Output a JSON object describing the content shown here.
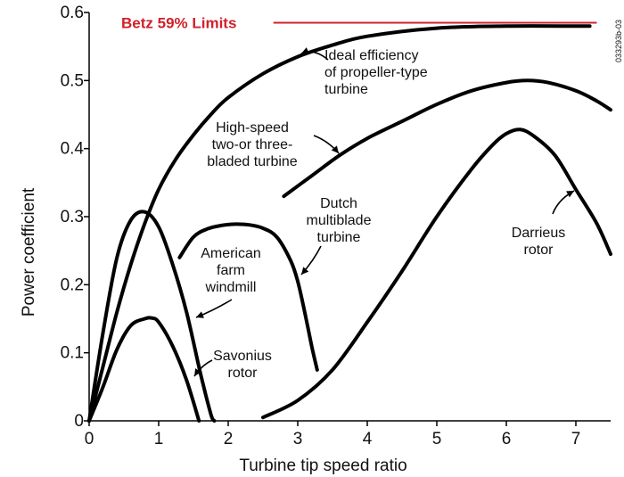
{
  "chart_data": {
    "type": "line",
    "xlabel": "Turbine tip speed ratio",
    "ylabel": "Power coefficient",
    "xlim": [
      0,
      7.5
    ],
    "ylim": [
      0,
      0.6
    ],
    "x_ticks": [
      "0",
      "1",
      "2",
      "3",
      "4",
      "5",
      "6",
      "7"
    ],
    "y_ticks": [
      "0",
      "0.1",
      "0.2",
      "0.3",
      "0.4",
      "0.5",
      "0.6"
    ],
    "betz_limit": {
      "label": "Betz 59% Limits",
      "value": 0.585,
      "x_start": 2.65,
      "x_end": 7.3,
      "color": "#d1202a"
    },
    "watermark": "033293b-03",
    "series": [
      {
        "name": "Ideal efficiency of propeller-type turbine",
        "x": [
          0,
          0.2,
          0.4,
          0.6,
          0.8,
          1.0,
          1.25,
          1.5,
          1.75,
          2.0,
          2.5,
          3.0,
          3.5,
          4.0,
          5.0,
          6.0,
          7.0,
          7.2
        ],
        "y": [
          0,
          0.08,
          0.16,
          0.23,
          0.29,
          0.34,
          0.385,
          0.42,
          0.45,
          0.475,
          0.51,
          0.535,
          0.552,
          0.565,
          0.577,
          0.58,
          0.58,
          0.58
        ]
      },
      {
        "name": "High-speed two-or three-bladed turbine",
        "x": [
          2.8,
          3.2,
          3.6,
          4.0,
          4.5,
          5.0,
          5.5,
          6.0,
          6.3,
          6.6,
          7.0,
          7.3,
          7.5
        ],
        "y": [
          0.33,
          0.36,
          0.39,
          0.415,
          0.44,
          0.465,
          0.485,
          0.497,
          0.5,
          0.497,
          0.485,
          0.47,
          0.457
        ]
      },
      {
        "name": "Dutch multiblade turbine",
        "x": [
          1.3,
          1.5,
          1.7,
          1.9,
          2.1,
          2.3,
          2.5,
          2.7,
          2.9,
          3.0,
          3.1,
          3.2,
          3.28
        ],
        "y": [
          0.24,
          0.27,
          0.282,
          0.287,
          0.289,
          0.288,
          0.283,
          0.27,
          0.235,
          0.205,
          0.16,
          0.11,
          0.075
        ]
      },
      {
        "name": "American farm windmill",
        "x": [
          0,
          0.2,
          0.4,
          0.6,
          0.8,
          1.0,
          1.2,
          1.4,
          1.6,
          1.75,
          1.8
        ],
        "y": [
          0,
          0.13,
          0.24,
          0.295,
          0.307,
          0.285,
          0.23,
          0.16,
          0.07,
          0.01,
          0
        ]
      },
      {
        "name": "Savonius rotor",
        "x": [
          0,
          0.2,
          0.4,
          0.6,
          0.8,
          0.9,
          1.0,
          1.2,
          1.4,
          1.58
        ],
        "y": [
          0,
          0.05,
          0.105,
          0.14,
          0.15,
          0.151,
          0.145,
          0.11,
          0.06,
          0
        ]
      },
      {
        "name": "Darrieus rotor",
        "x": [
          2.5,
          3.0,
          3.5,
          4.0,
          4.5,
          5.0,
          5.5,
          5.8,
          6.0,
          6.2,
          6.4,
          6.7,
          7.0,
          7.3,
          7.5
        ],
        "y": [
          0.005,
          0.03,
          0.075,
          0.145,
          0.22,
          0.3,
          0.37,
          0.405,
          0.422,
          0.428,
          0.418,
          0.39,
          0.34,
          0.29,
          0.245
        ]
      }
    ],
    "annotations": [
      {
        "series": "Ideal efficiency of propeller-type turbine",
        "lines": [
          "Ideal efficiency",
          "of propeller-type",
          "turbine"
        ]
      },
      {
        "series": "High-speed two-or three-bladed turbine",
        "lines": [
          "High-speed",
          "two-or three-",
          "bladed turbine"
        ]
      },
      {
        "series": "Dutch multiblade turbine",
        "lines": [
          "Dutch",
          "multiblade",
          "turbine"
        ]
      },
      {
        "series": "American farm windmill",
        "lines": [
          "American",
          "farm",
          "windmill"
        ]
      },
      {
        "series": "Savonius rotor",
        "lines": [
          "Savonius",
          "rotor"
        ]
      },
      {
        "series": "Darrieus rotor",
        "lines": [
          "Darrieus",
          "rotor"
        ]
      }
    ]
  }
}
